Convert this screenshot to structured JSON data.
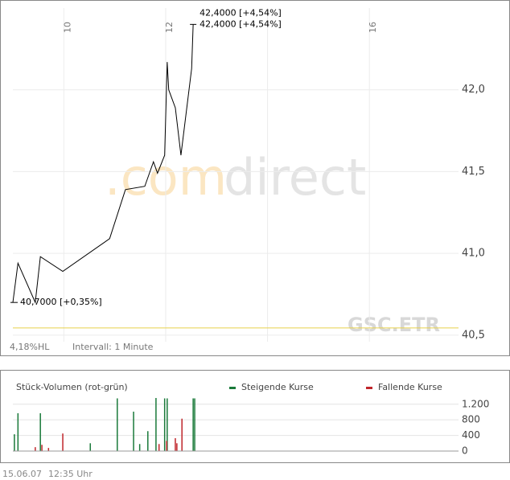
{
  "chart_data": [
    {
      "type": "line",
      "annotations": [
        "42,4000 [+4,54%]",
        "42,4000 [+4,54%]",
        "40,7000 [+0,35%]"
      ],
      "watermark": [
        ".com",
        "direct"
      ],
      "symbol": "GSC.ETR",
      "range_label": "4,18%HL",
      "interval_label": "Intervall: 1 Minute",
      "reference_line": 40.544,
      "reference_color": "#e6d04a",
      "xlim": [
        9,
        17.75
      ],
      "xticks": [
        {
          "value": 10,
          "label": "10"
        },
        {
          "value": 12,
          "label": "12"
        },
        {
          "value": 14,
          "label": null
        },
        {
          "value": 16,
          "label": "16"
        }
      ],
      "ylim": [
        40.46,
        42.5
      ],
      "yticks": [
        {
          "value": 40.5,
          "label": "40,5"
        },
        {
          "value": 41,
          "label": "41,0"
        },
        {
          "value": 41.5,
          "label": "41,5"
        },
        {
          "value": 42,
          "label": "42,0"
        }
      ],
      "grid": true,
      "series": [
        {
          "color": "#000000",
          "x": [
            9.0,
            9.1,
            9.44,
            9.54,
            9.98,
            10.9,
            11.21,
            11.59,
            11.76,
            11.84,
            11.98,
            12.03,
            12.06,
            12.19,
            12.3,
            12.51,
            12.54
          ],
          "values": [
            40.7,
            40.94,
            40.7,
            40.98,
            40.89,
            41.09,
            41.39,
            41.41,
            41.56,
            41.49,
            41.6,
            42.17,
            42.0,
            41.89,
            41.6,
            42.13,
            42.4
          ]
        }
      ]
    },
    {
      "type": "bar",
      "title": "Stück-Volumen (rot-grün)",
      "xlim": [
        9,
        17.75
      ],
      "ylim": [
        0,
        1360
      ],
      "yticks": [
        0,
        400,
        800,
        {
          "value": 1200,
          "label": "1.200"
        }
      ],
      "grid": true,
      "series": [
        {
          "name": "Steigende Kurse",
          "color": "#1a7a3a",
          "x": [
            9.03,
            9.1,
            9.54,
            10.52,
            11.05,
            11.37,
            11.49,
            11.65,
            11.81,
            11.98,
            12.03,
            12.54,
            12.57
          ],
          "values": [
            430,
            970,
            970,
            200,
            1350,
            1010,
            180,
            510,
            1360,
            1350,
            1350,
            1350,
            1350
          ]
        },
        {
          "name": "Fallende Kurse",
          "color": "#c0262b",
          "x": [
            9.44,
            9.57,
            9.7,
            9.98,
            11.87,
            12.02,
            12.19,
            12.22,
            12.32
          ],
          "values": [
            100,
            160,
            80,
            450,
            180,
            260,
            330,
            200,
            830
          ]
        }
      ]
    }
  ],
  "footer": {
    "date": "15.06.07",
    "time": "12:35 Uhr"
  }
}
